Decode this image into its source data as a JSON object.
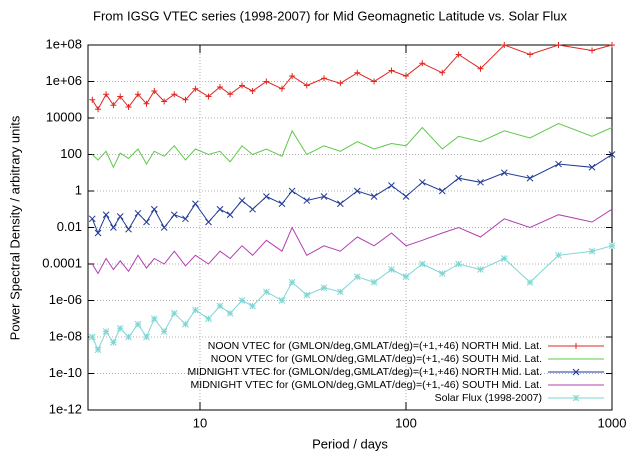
{
  "chart_data": {
    "type": "line",
    "title": "From IGSG VTEC series (1998-2007) for Mid Geomagnetic Latitude vs. Solar Flux",
    "x_label": "Period / days",
    "y_label": "Power Spectral Density / arbitrary units",
    "log_x": true,
    "log_y": true,
    "grid": true,
    "legend": "lower right",
    "xlim": [
      2.86,
      1000
    ],
    "xticks": [
      10,
      100,
      1000
    ],
    "ylim": [
      1e-12,
      100000000.0
    ],
    "yticks": [
      {
        "value": 1e-12,
        "label": "1e-12"
      },
      {
        "value": 1e-10,
        "label": "1e-10"
      },
      {
        "value": 1e-08,
        "label": "1e-08"
      },
      {
        "value": 1e-06,
        "label": "1e-06"
      },
      0.0001,
      0.01,
      1,
      100,
      10000,
      {
        "value": 1000000.0,
        "label": "1e+06"
      },
      {
        "value": 100000000.0,
        "label": "1e+08"
      }
    ],
    "x": [
      3,
      3.2,
      3.5,
      3.8,
      4.1,
      4.5,
      5,
      5.5,
      6,
      6.7,
      7.5,
      8.5,
      9.5,
      11,
      12.5,
      14,
      16,
      18,
      21,
      25,
      28,
      33,
      40,
      48,
      58,
      70,
      85,
      100,
      120,
      150,
      180,
      230,
      300,
      400,
      550,
      800,
      1000
    ],
    "series": [
      {
        "name": "NOON VTEC for (GMLON/deg,GMLAT/deg)=(+1,+46) NORTH Mid. Lat.",
        "color": "#e0261f",
        "marker": "plus",
        "values": [
          100000.0,
          30000.0,
          200000.0,
          50000.0,
          150000.0,
          40000.0,
          200000.0,
          60000.0,
          300000.0,
          80000.0,
          200000.0,
          100000.0,
          400000.0,
          150000.0,
          500000.0,
          200000.0,
          600000.0,
          300000.0,
          1000000.0,
          400000.0,
          2000000.0,
          600000.0,
          1500000.0,
          800000.0,
          3000000.0,
          1000000.0,
          4000000.0,
          2000000.0,
          10000000.0,
          3000000.0,
          30000000.0,
          5000000.0,
          100000000.0,
          30000000.0,
          100000000.0,
          50000000.0,
          100000000.0
        ]
      },
      {
        "name": "NOON VTEC for (GMLON/deg,GMLAT/deg)=(+1,-46) SOUTH Mid. Lat.",
        "color": "#5ec94a",
        "marker": "none",
        "values": [
          100,
          50,
          150,
          20,
          120,
          60,
          200,
          30,
          150,
          80,
          300,
          50,
          200,
          100,
          150,
          40,
          300,
          100,
          200,
          80,
          2000,
          100,
          300,
          150,
          500,
          200,
          400,
          300,
          3000,
          200,
          1000,
          500,
          2000,
          800,
          5000,
          1000,
          3000
        ]
      },
      {
        "name": "MIDNIGHT VTEC for (GMLON/deg,GMLAT/deg)=(+1,+46) NORTH Mid. Lat.",
        "color": "#1f3a93",
        "marker": "cross",
        "values": [
          0.03,
          0.005,
          0.05,
          0.01,
          0.04,
          0.008,
          0.06,
          0.02,
          0.1,
          0.01,
          0.05,
          0.03,
          0.2,
          0.02,
          0.1,
          0.05,
          0.3,
          0.1,
          0.5,
          0.2,
          1,
          0.3,
          0.5,
          0.2,
          1,
          0.5,
          2,
          0.5,
          3,
          1,
          5,
          3,
          10,
          5,
          30,
          20,
          100
        ]
      },
      {
        "name": "MIDNIGHT VTEC for (GMLON/deg,GMLAT/deg)=(+1,-46) SOUTH Mid. Lat.",
        "color": "#b33fb0",
        "marker": "none",
        "values": [
          0.0001,
          3e-05,
          0.0002,
          5e-05,
          0.00015,
          4e-05,
          0.0003,
          6e-05,
          0.0002,
          0.0001,
          0.0005,
          8e-05,
          0.0003,
          0.0001,
          0.0005,
          0.0002,
          0.001,
          0.0003,
          0.002,
          0.0005,
          0.01,
          0.0003,
          0.001,
          0.0005,
          0.003,
          0.001,
          0.005,
          0.001,
          0.002,
          0.005,
          0.01,
          0.003,
          0.03,
          0.01,
          0.05,
          0.02,
          0.1
        ]
      },
      {
        "name": "Solar Flux (1998-2007)",
        "color": "#7fd6d4",
        "marker": "star",
        "values": [
          1e-08,
          2e-09,
          2e-08,
          5e-09,
          3e-08,
          1e-08,
          5e-08,
          1e-08,
          1e-07,
          2e-08,
          2e-07,
          5e-08,
          3e-07,
          1e-07,
          5e-07,
          2e-07,
          1e-06,
          5e-07,
          3e-06,
          1e-06,
          1e-05,
          2e-06,
          5e-06,
          3e-06,
          2e-05,
          1e-05,
          5e-05,
          2e-05,
          0.0001,
          3e-05,
          0.0001,
          5e-05,
          0.0002,
          1e-05,
          0.0003,
          0.0005,
          0.001
        ]
      }
    ]
  }
}
